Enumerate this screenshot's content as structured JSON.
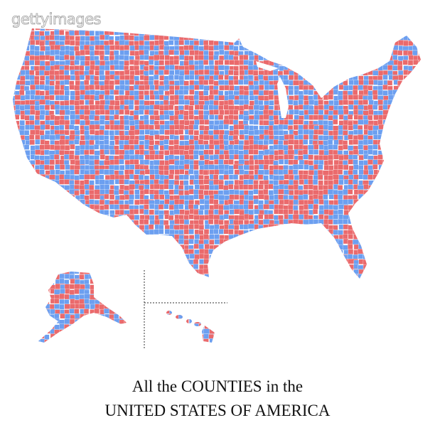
{
  "watermark": "gettyimages",
  "caption": {
    "line1": "All the COUNTIES in the",
    "line2": "UNITED STATES OF AMERICA"
  }
}
